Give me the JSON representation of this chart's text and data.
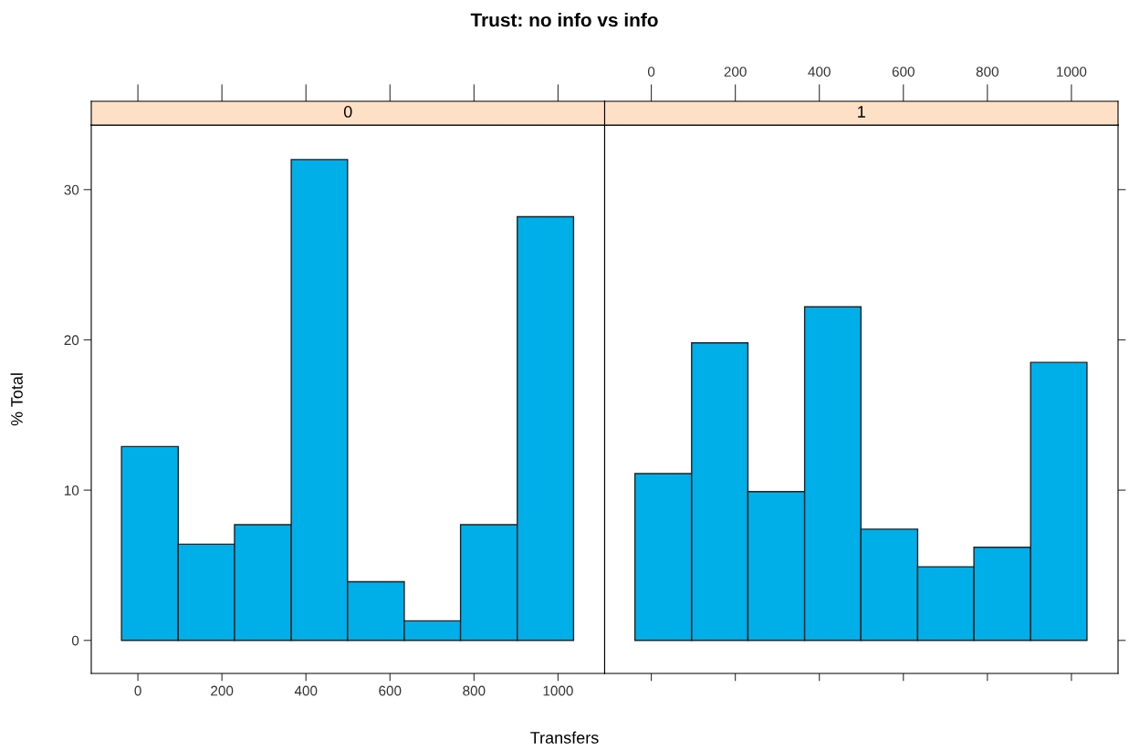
{
  "chart_data": [
    {
      "type": "histogram",
      "title": "Trust: no info vs info",
      "subtitle": "0",
      "xlabel": "Transfers",
      "ylabel": "% Total",
      "color": "#00aee8",
      "bins": [
        -39,
        96,
        230,
        365,
        499,
        634,
        768,
        903,
        1037
      ],
      "values": [
        12.9,
        6.4,
        7.7,
        32.0,
        3.9,
        1.3,
        7.7,
        28.2
      ],
      "xlim": [
        -111,
        1111
      ],
      "xticks": [
        0,
        200,
        400,
        600,
        800,
        1000
      ],
      "ylim": [
        -2.2,
        34.3
      ],
      "yticks": [
        0,
        10,
        20,
        30
      ],
      "grid": false
    },
    {
      "type": "histogram",
      "subtitle": "1",
      "color": "#00aee8",
      "bins": [
        -39,
        96,
        230,
        365,
        499,
        634,
        768,
        903,
        1037
      ],
      "values": [
        11.1,
        19.8,
        9.9,
        22.2,
        7.4,
        4.9,
        6.2,
        18.5
      ],
      "xlim": [
        -111,
        1111
      ],
      "xticks": [
        0,
        200,
        400,
        600,
        800,
        1000
      ],
      "ylim": [
        -2.2,
        34.3
      ],
      "tick_labels": "x",
      "grid": false
    }
  ]
}
